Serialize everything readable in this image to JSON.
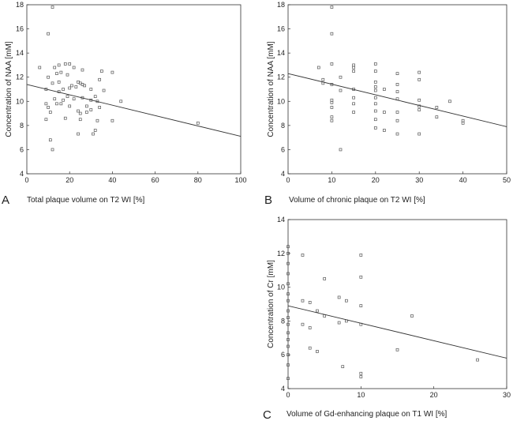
{
  "chart_data": [
    {
      "panel": "A",
      "type": "scatter",
      "xlabel": "Total plaque volume on T2 WI [%]",
      "ylabel": "Concentration of NAA [mM]",
      "xlim": [
        0,
        100
      ],
      "ylim": [
        4,
        18
      ],
      "xticks": [
        0,
        20,
        40,
        60,
        80,
        100
      ],
      "yticks": [
        4,
        6,
        8,
        10,
        12,
        14,
        16,
        18
      ],
      "regression": [
        [
          0,
          11.4
        ],
        [
          100,
          7.1
        ]
      ],
      "points": [
        [
          6,
          12.8
        ],
        [
          9,
          11.0
        ],
        [
          9,
          9.8
        ],
        [
          9,
          8.5
        ],
        [
          10,
          15.6
        ],
        [
          10,
          12.0
        ],
        [
          10,
          9.5
        ],
        [
          11,
          6.8
        ],
        [
          11,
          9.1
        ],
        [
          12,
          17.8
        ],
        [
          12,
          11.5
        ],
        [
          12,
          6.0
        ],
        [
          13,
          12.8
        ],
        [
          13,
          10.2
        ],
        [
          14,
          12.3
        ],
        [
          14,
          9.8
        ],
        [
          15,
          13.0
        ],
        [
          15,
          11.6
        ],
        [
          15,
          10.8
        ],
        [
          16,
          12.4
        ],
        [
          16,
          9.8
        ],
        [
          17,
          11.0
        ],
        [
          17,
          10.1
        ],
        [
          18,
          13.1
        ],
        [
          18,
          8.6
        ],
        [
          19,
          12.2
        ],
        [
          19,
          10.4
        ],
        [
          20,
          13.1
        ],
        [
          20,
          11.1
        ],
        [
          20,
          9.6
        ],
        [
          21,
          11.3
        ],
        [
          22,
          12.8
        ],
        [
          22,
          10.2
        ],
        [
          23,
          11.2
        ],
        [
          24,
          11.6
        ],
        [
          24,
          9.2
        ],
        [
          24,
          7.3
        ],
        [
          25,
          11.5
        ],
        [
          25,
          9.0
        ],
        [
          25,
          8.5
        ],
        [
          26,
          12.6
        ],
        [
          26,
          11.4
        ],
        [
          26,
          10.3
        ],
        [
          27,
          11.3
        ],
        [
          28,
          9.6
        ],
        [
          28,
          9.1
        ],
        [
          30,
          11.0
        ],
        [
          30,
          10.1
        ],
        [
          30,
          9.3
        ],
        [
          31,
          7.3
        ],
        [
          32,
          10.4
        ],
        [
          32,
          7.6
        ],
        [
          33,
          10.0
        ],
        [
          33,
          8.4
        ],
        [
          34,
          11.8
        ],
        [
          34,
          9.5
        ],
        [
          35,
          12.5
        ],
        [
          36,
          10.9
        ],
        [
          40,
          12.4
        ],
        [
          40,
          8.4
        ],
        [
          44,
          10.0
        ],
        [
          80,
          8.2
        ]
      ]
    },
    {
      "panel": "B",
      "type": "scatter",
      "xlabel": "Volume of chronic plaque on T2 WI [%]",
      "ylabel": "Concentration of NAA [mM]",
      "xlim": [
        0,
        50
      ],
      "ylim": [
        4,
        18
      ],
      "xticks": [
        0,
        10,
        20,
        30,
        40,
        50
      ],
      "yticks": [
        4,
        6,
        8,
        10,
        12,
        14,
        16,
        18
      ],
      "regression": [
        [
          0,
          12.3
        ],
        [
          50,
          7.9
        ]
      ],
      "points": [
        [
          7,
          12.8
        ],
        [
          8,
          11.8
        ],
        [
          8,
          11.5
        ],
        [
          10,
          17.8
        ],
        [
          10,
          15.6
        ],
        [
          10,
          13.1
        ],
        [
          10,
          11.4
        ],
        [
          10,
          10.1
        ],
        [
          10,
          9.9
        ],
        [
          10,
          9.5
        ],
        [
          10,
          8.7
        ],
        [
          10,
          8.4
        ],
        [
          12,
          12.0
        ],
        [
          12,
          10.9
        ],
        [
          12,
          6.0
        ],
        [
          15,
          13.0
        ],
        [
          15,
          12.8
        ],
        [
          15,
          12.5
        ],
        [
          15,
          11.0
        ],
        [
          15,
          10.3
        ],
        [
          15,
          9.8
        ],
        [
          15,
          9.1
        ],
        [
          20,
          13.1
        ],
        [
          20,
          12.5
        ],
        [
          20,
          11.6
        ],
        [
          20,
          11.2
        ],
        [
          20,
          10.9
        ],
        [
          20,
          10.3
        ],
        [
          20,
          9.8
        ],
        [
          20,
          9.2
        ],
        [
          20,
          8.5
        ],
        [
          20,
          7.8
        ],
        [
          22,
          11.0
        ],
        [
          22,
          9.1
        ],
        [
          22,
          7.6
        ],
        [
          25,
          12.3
        ],
        [
          25,
          11.4
        ],
        [
          25,
          10.8
        ],
        [
          25,
          10.2
        ],
        [
          25,
          9.1
        ],
        [
          25,
          8.4
        ],
        [
          25,
          7.3
        ],
        [
          30,
          12.4
        ],
        [
          30,
          11.8
        ],
        [
          30,
          10.1
        ],
        [
          30,
          9.6
        ],
        [
          30,
          9.3
        ],
        [
          30,
          7.3
        ],
        [
          34,
          9.5
        ],
        [
          34,
          8.7
        ],
        [
          37,
          10.0
        ],
        [
          40,
          8.4
        ],
        [
          40,
          8.2
        ]
      ]
    },
    {
      "panel": "C",
      "type": "scatter",
      "xlabel": "Volume of Gd-enhancing plaque on T1 WI [%]",
      "ylabel": "Concentration of Cr [mM]",
      "xlim": [
        0,
        30
      ],
      "ylim": [
        4,
        14
      ],
      "xticks": [
        0,
        10,
        20,
        30
      ],
      "yticks": [
        4,
        6,
        8,
        10,
        12,
        14
      ],
      "regression": [
        [
          0,
          8.9
        ],
        [
          30,
          5.8
        ]
      ],
      "points": [
        [
          0,
          12.4
        ],
        [
          0,
          12.0
        ],
        [
          0,
          11.4
        ],
        [
          0,
          10.8
        ],
        [
          0,
          10.2
        ],
        [
          0,
          9.6
        ],
        [
          0,
          9.2
        ],
        [
          0,
          8.6
        ],
        [
          0,
          8.2
        ],
        [
          0,
          7.8
        ],
        [
          0,
          7.3
        ],
        [
          0,
          6.9
        ],
        [
          0,
          6.5
        ],
        [
          0,
          6.0
        ],
        [
          0,
          5.4
        ],
        [
          0,
          4.6
        ],
        [
          2,
          11.9
        ],
        [
          2,
          9.2
        ],
        [
          2,
          7.8
        ],
        [
          3,
          9.1
        ],
        [
          3,
          7.6
        ],
        [
          3,
          6.4
        ],
        [
          4,
          6.2
        ],
        [
          4,
          8.6
        ],
        [
          5,
          10.5
        ],
        [
          5,
          8.3
        ],
        [
          7,
          9.4
        ],
        [
          7,
          7.9
        ],
        [
          7.5,
          5.3
        ],
        [
          8,
          9.2
        ],
        [
          8,
          8.0
        ],
        [
          10,
          11.9
        ],
        [
          10,
          10.6
        ],
        [
          10,
          8.9
        ],
        [
          10,
          7.8
        ],
        [
          10,
          4.9
        ],
        [
          10,
          4.7
        ],
        [
          15,
          6.3
        ],
        [
          17,
          8.3
        ],
        [
          26,
          5.7
        ]
      ]
    }
  ],
  "panel_letters": {
    "a": "A",
    "b": "B",
    "c": "C"
  },
  "axis_labels": {
    "a_x": "Total plaque volume on T2 WI [%]",
    "a_y": "Concentration of NAA [mM]",
    "b_x": "Volume of chronic plaque on T2 WI [%]",
    "b_y": "Concentration of NAA [mM]",
    "c_x": "Volume of Gd-enhancing plaque on T1 WI [%]",
    "c_y": "Concentration of Cr [mM]"
  }
}
